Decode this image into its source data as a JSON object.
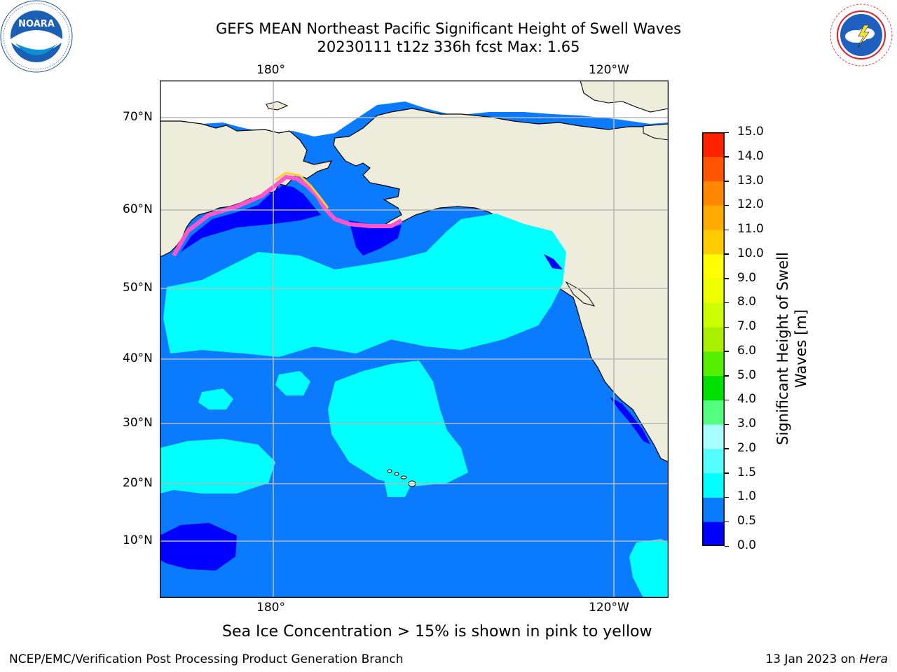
{
  "header": {
    "title_line1": "GEFS MEAN Northeast Pacific Significant Height of Swell Waves",
    "title_line2": "20230111 t12z 336h fcst   Max: 1.65"
  },
  "logos": {
    "left": {
      "name": "NOARA",
      "ring": "NATIONAL OCEANIC AND ATMOSPHERIC ADMINISTRATION · U.S. DEPARTMENT OF COMMERCE"
    },
    "right": {
      "ring": "NATIONAL WEATHER SERVICE"
    }
  },
  "footer": {
    "caption": "Sea Ice Concentration > 15% is shown in pink to yellow",
    "left": "NCEP/EMC/Verification Post Processing Product Generation Branch",
    "right_date": "13 Jan 2023 on ",
    "right_host": "Hera"
  },
  "chart_data": {
    "type": "heatmap",
    "title": "GEFS MEAN Northeast Pacific Significant Height of Swell Waves",
    "subtitle": "20230111 t12z 336h fcst   Max: 1.65",
    "max_value": 1.65,
    "x_ticks": [
      "180°",
      "120°W"
    ],
    "y_ticks": [
      "70°N",
      "60°N",
      "50°N",
      "40°N",
      "30°N",
      "20°N",
      "10°N"
    ],
    "grid": true,
    "legend": "right",
    "colorbar": {
      "label": "Significant Height of Swell Waves [m]",
      "label_line1": "Significant Height of Swell",
      "label_line2": "Waves [m]",
      "range": [
        0.0,
        15.0
      ],
      "ticks": [
        "0.0",
        "0.5",
        "1.0",
        "1.5",
        "2.0",
        "3.0",
        "4.0",
        "5.0",
        "6.0",
        "7.0",
        "8.0",
        "9.0",
        "10.0",
        "11.0",
        "12.0",
        "13.0",
        "14.0",
        "15.0"
      ],
      "colors": [
        "#0000ff",
        "#0a7aff",
        "#00ffff",
        "#55ffff",
        "#aaffff",
        "#55ff7f",
        "#00e000",
        "#55f000",
        "#aaee00",
        "#ccff00",
        "#eeff00",
        "#ffff00",
        "#ffcc00",
        "#ffaa00",
        "#ff8800",
        "#ff5500",
        "#ff2200",
        "#ff0000"
      ]
    },
    "colors": {
      "land": "#eeeddc",
      "ocean": "#0a7aff",
      "swell_1_to_1_5": "#00ffff",
      "swell_0_to_0_5": "#0000ff",
      "sea_ice": "#ff66cc"
    }
  }
}
